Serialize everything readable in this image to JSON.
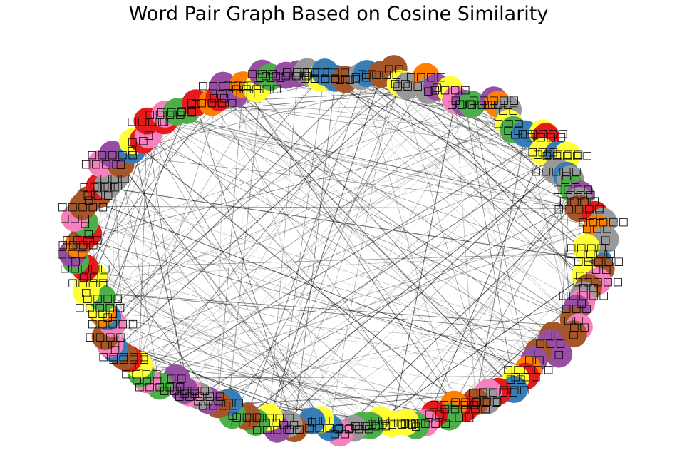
{
  "title": "Word Pair Graph Based on Cosine Similarity",
  "chart_data": {
    "type": "network",
    "layout": "circular",
    "node_count": 150,
    "labels_note": "Node labels render as missing-glyph boxes (□) in the original; label lengths shown as box counts",
    "palette": [
      "#e41a1c",
      "#377eb8",
      "#4daf4a",
      "#984ea3",
      "#ff7f00",
      "#ffff33",
      "#a65628",
      "#f781bf",
      "#999999"
    ],
    "edge_color": "#000000",
    "edge_count": 260,
    "grid": false,
    "legend": "none"
  }
}
